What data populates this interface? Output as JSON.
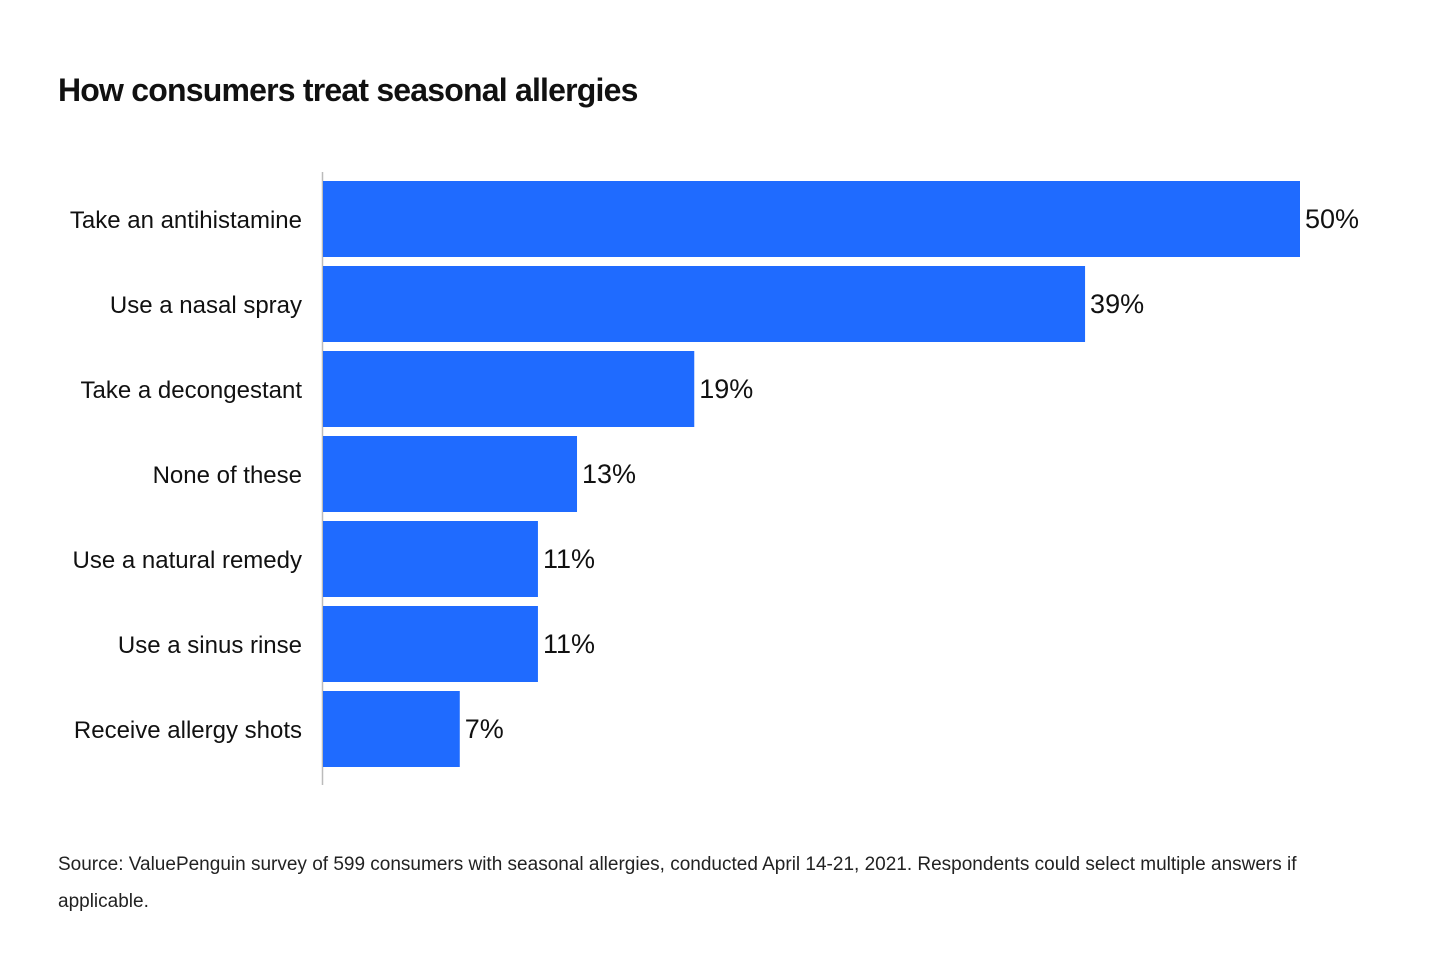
{
  "chart_data": {
    "type": "bar",
    "orientation": "horizontal",
    "title": "How consumers treat seasonal allergies",
    "categories": [
      "Take an antihistamine",
      "Use a nasal spray",
      "Take a decongestant",
      "None of these",
      "Use a natural remedy",
      "Use a sinus rinse",
      "Receive allergy shots"
    ],
    "values": [
      50,
      39,
      19,
      13,
      11,
      11,
      7
    ],
    "value_labels": [
      "50%",
      "39%",
      "19%",
      "13%",
      "11%",
      "11%",
      "7%"
    ],
    "unit": "%",
    "xlim": [
      0,
      50
    ],
    "grid": false,
    "legend": "none",
    "bar_color": "#1f6bff",
    "axis_color": "#bbbbbb"
  },
  "source": "Source: ValuePenguin survey of 599 consumers with seasonal allergies, conducted April 14-21, 2021. Respondents could select multiple answers if applicable."
}
